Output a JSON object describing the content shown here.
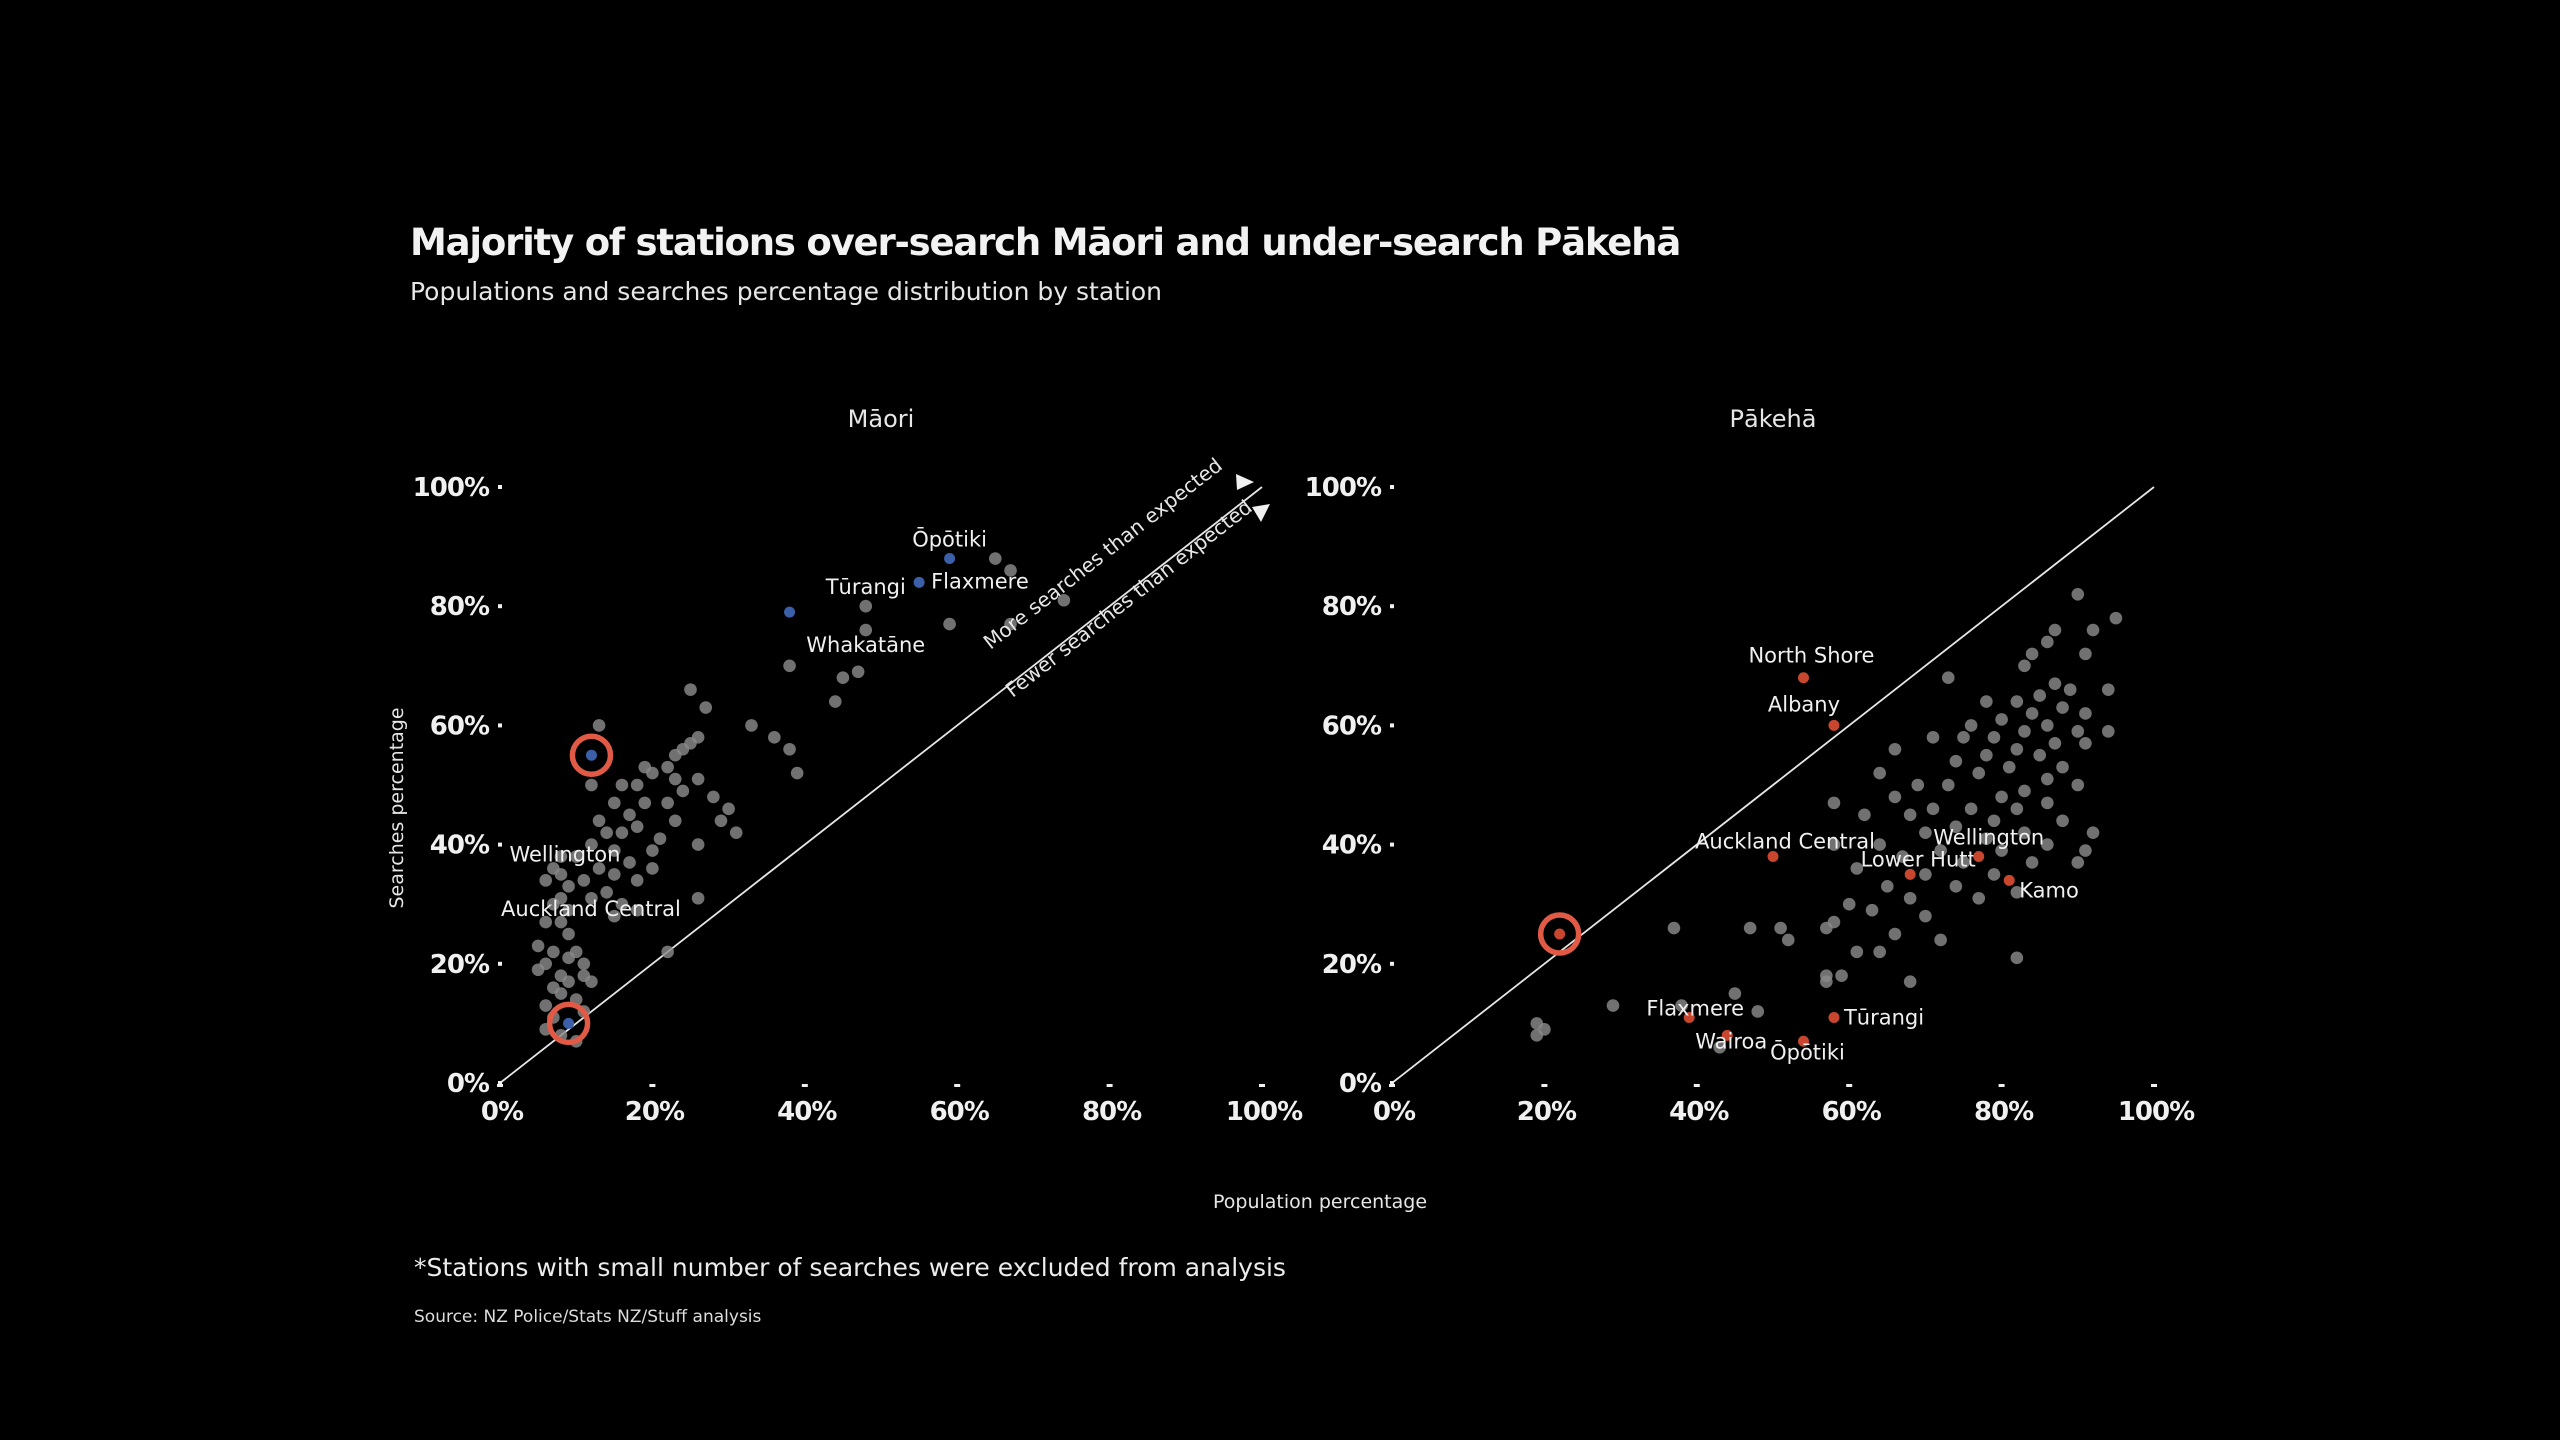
{
  "title": "Majority of stations over-search Māori and under-search Pākehā",
  "subtitle": "Populations and searches percentage distribution by station",
  "x_axis_label": "Population percentage",
  "y_axis_label": "Searches percentage",
  "footnote": "*Stations with small number of searches were excluded from analysis",
  "source": "Source: NZ Police/Stats NZ/Stuff analysis",
  "annotations": {
    "above": "More searches than expected",
    "below": "Fewer searches than expected"
  },
  "colors": {
    "background": "#000000",
    "point_gray": "#8a8a8a",
    "maori_highlight": "#3b5fa8",
    "pakeha_highlight": "#c8452e",
    "circle_ring": "#e05a45",
    "diagonal": "#e6e6e6"
  },
  "chart_data": [
    {
      "type": "scatter",
      "title": "Māori",
      "xlabel": "Population percentage",
      "ylabel": "Searches percentage",
      "xlim": [
        0,
        100
      ],
      "ylim": [
        0,
        100
      ],
      "x_ticks": [
        "0%",
        "20%",
        "40%",
        "60%",
        "80%",
        "100%"
      ],
      "y_ticks": [
        "0%",
        "20%",
        "40%",
        "60%",
        "80%",
        "100%"
      ],
      "reference_line": "y = x",
      "labeled_points": [
        {
          "label": "Ōpōtiki",
          "x": 59,
          "y": 88,
          "highlight": true
        },
        {
          "label": "Flaxmere",
          "x": 55,
          "y": 84,
          "highlight": true
        },
        {
          "label": "Tūrangi",
          "x": 48,
          "y": 80,
          "highlight": false
        },
        {
          "label": "Whakatāne",
          "x": 48,
          "y": 76,
          "highlight": false
        },
        {
          "label": "Wellington",
          "x": 8,
          "y": 35,
          "highlight": false
        },
        {
          "label": "Auckland Central",
          "x": 8,
          "y": 31,
          "highlight": false
        }
      ],
      "highlight_points": [
        {
          "x": 38,
          "y": 79
        },
        {
          "x": 12,
          "y": 55
        },
        {
          "x": 9,
          "y": 10
        }
      ],
      "circled_points": [
        {
          "x": 12,
          "y": 55
        },
        {
          "x": 9,
          "y": 10
        }
      ],
      "points": [
        {
          "x": 65,
          "y": 88
        },
        {
          "x": 67,
          "y": 86
        },
        {
          "x": 59,
          "y": 77
        },
        {
          "x": 67,
          "y": 77
        },
        {
          "x": 74,
          "y": 81
        },
        {
          "x": 38,
          "y": 70
        },
        {
          "x": 45,
          "y": 68
        },
        {
          "x": 47,
          "y": 69
        },
        {
          "x": 44,
          "y": 64
        },
        {
          "x": 36,
          "y": 58
        },
        {
          "x": 38,
          "y": 56
        },
        {
          "x": 39,
          "y": 52
        },
        {
          "x": 33,
          "y": 60
        },
        {
          "x": 25,
          "y": 66
        },
        {
          "x": 27,
          "y": 63
        },
        {
          "x": 26,
          "y": 58
        },
        {
          "x": 25,
          "y": 57
        },
        {
          "x": 24,
          "y": 56
        },
        {
          "x": 23,
          "y": 55
        },
        {
          "x": 22,
          "y": 53
        },
        {
          "x": 23,
          "y": 51
        },
        {
          "x": 26,
          "y": 51
        },
        {
          "x": 24,
          "y": 49
        },
        {
          "x": 22,
          "y": 47
        },
        {
          "x": 28,
          "y": 48
        },
        {
          "x": 20,
          "y": 52
        },
        {
          "x": 19,
          "y": 53
        },
        {
          "x": 18,
          "y": 50
        },
        {
          "x": 16,
          "y": 50
        },
        {
          "x": 15,
          "y": 47
        },
        {
          "x": 17,
          "y": 45
        },
        {
          "x": 19,
          "y": 47
        },
        {
          "x": 13,
          "y": 44
        },
        {
          "x": 14,
          "y": 42
        },
        {
          "x": 16,
          "y": 42
        },
        {
          "x": 18,
          "y": 43
        },
        {
          "x": 12,
          "y": 40
        },
        {
          "x": 15,
          "y": 39
        },
        {
          "x": 17,
          "y": 37
        },
        {
          "x": 20,
          "y": 39
        },
        {
          "x": 21,
          "y": 41
        },
        {
          "x": 23,
          "y": 44
        },
        {
          "x": 26,
          "y": 40
        },
        {
          "x": 29,
          "y": 44
        },
        {
          "x": 31,
          "y": 42
        },
        {
          "x": 10,
          "y": 38
        },
        {
          "x": 8,
          "y": 38
        },
        {
          "x": 7,
          "y": 36
        },
        {
          "x": 6,
          "y": 34
        },
        {
          "x": 9,
          "y": 33
        },
        {
          "x": 11,
          "y": 34
        },
        {
          "x": 13,
          "y": 36
        },
        {
          "x": 15,
          "y": 35
        },
        {
          "x": 18,
          "y": 34
        },
        {
          "x": 20,
          "y": 36
        },
        {
          "x": 12,
          "y": 31
        },
        {
          "x": 14,
          "y": 32
        },
        {
          "x": 16,
          "y": 30
        },
        {
          "x": 15,
          "y": 28
        },
        {
          "x": 18,
          "y": 29
        },
        {
          "x": 7,
          "y": 30
        },
        {
          "x": 9,
          "y": 29
        },
        {
          "x": 8,
          "y": 27
        },
        {
          "x": 6,
          "y": 27
        },
        {
          "x": 9,
          "y": 25
        },
        {
          "x": 5,
          "y": 23
        },
        {
          "x": 7,
          "y": 22
        },
        {
          "x": 9,
          "y": 21
        },
        {
          "x": 10,
          "y": 22
        },
        {
          "x": 11,
          "y": 20
        },
        {
          "x": 6,
          "y": 20
        },
        {
          "x": 8,
          "y": 18
        },
        {
          "x": 5,
          "y": 19
        },
        {
          "x": 9,
          "y": 17
        },
        {
          "x": 11,
          "y": 18
        },
        {
          "x": 7,
          "y": 16
        },
        {
          "x": 8,
          "y": 15
        },
        {
          "x": 10,
          "y": 14
        },
        {
          "x": 6,
          "y": 13
        },
        {
          "x": 12,
          "y": 17
        },
        {
          "x": 11,
          "y": 12
        },
        {
          "x": 7,
          "y": 11
        },
        {
          "x": 6,
          "y": 9
        },
        {
          "x": 8,
          "y": 8
        },
        {
          "x": 10,
          "y": 7
        },
        {
          "x": 13,
          "y": 60
        },
        {
          "x": 12,
          "y": 50
        },
        {
          "x": 22,
          "y": 22
        },
        {
          "x": 26,
          "y": 31
        },
        {
          "x": 30,
          "y": 46
        }
      ]
    },
    {
      "type": "scatter",
      "title": "Pākehā",
      "xlabel": "Population percentage",
      "ylabel": "Searches percentage",
      "xlim": [
        0,
        100
      ],
      "ylim": [
        0,
        100
      ],
      "x_ticks": [
        "0%",
        "20%",
        "40%",
        "60%",
        "80%",
        "100%"
      ],
      "y_ticks": [
        "0%",
        "20%",
        "40%",
        "60%",
        "80%",
        "100%"
      ],
      "reference_line": "y = x",
      "labeled_points": [
        {
          "label": "North Shore",
          "x": 54,
          "y": 68,
          "highlight": true
        },
        {
          "label": "Albany",
          "x": 58,
          "y": 60,
          "highlight": true
        },
        {
          "label": "Auckland Central",
          "x": 50,
          "y": 38,
          "highlight": true
        },
        {
          "label": "Lower Hutt",
          "x": 68,
          "y": 35,
          "highlight": true
        },
        {
          "label": "Wellington",
          "x": 77,
          "y": 38,
          "highlight": true
        },
        {
          "label": "Kamo",
          "x": 81,
          "y": 34,
          "highlight": true
        },
        {
          "label": "Flaxmere",
          "x": 39,
          "y": 11,
          "highlight": true
        },
        {
          "label": "Wairoa",
          "x": 44,
          "y": 8,
          "highlight": true
        },
        {
          "label": "Tūrangi",
          "x": 58,
          "y": 11,
          "highlight": true
        },
        {
          "label": "Ōpōtiki",
          "x": 54,
          "y": 7,
          "highlight": true
        }
      ],
      "highlight_points": [
        {
          "x": 22,
          "y": 25
        }
      ],
      "circled_points": [
        {
          "x": 22,
          "y": 25
        }
      ],
      "points": [
        {
          "x": 90,
          "y": 82
        },
        {
          "x": 95,
          "y": 78
        },
        {
          "x": 87,
          "y": 76
        },
        {
          "x": 92,
          "y": 76
        },
        {
          "x": 86,
          "y": 74
        },
        {
          "x": 84,
          "y": 72
        },
        {
          "x": 91,
          "y": 72
        },
        {
          "x": 83,
          "y": 70
        },
        {
          "x": 73,
          "y": 68
        },
        {
          "x": 87,
          "y": 67
        },
        {
          "x": 94,
          "y": 66
        },
        {
          "x": 89,
          "y": 66
        },
        {
          "x": 85,
          "y": 65
        },
        {
          "x": 82,
          "y": 64
        },
        {
          "x": 78,
          "y": 64
        },
        {
          "x": 88,
          "y": 63
        },
        {
          "x": 91,
          "y": 62
        },
        {
          "x": 84,
          "y": 62
        },
        {
          "x": 80,
          "y": 61
        },
        {
          "x": 76,
          "y": 60
        },
        {
          "x": 86,
          "y": 60
        },
        {
          "x": 90,
          "y": 59
        },
        {
          "x": 94,
          "y": 59
        },
        {
          "x": 83,
          "y": 59
        },
        {
          "x": 79,
          "y": 58
        },
        {
          "x": 75,
          "y": 58
        },
        {
          "x": 71,
          "y": 58
        },
        {
          "x": 87,
          "y": 57
        },
        {
          "x": 91,
          "y": 57
        },
        {
          "x": 82,
          "y": 56
        },
        {
          "x": 78,
          "y": 55
        },
        {
          "x": 85,
          "y": 55
        },
        {
          "x": 66,
          "y": 56
        },
        {
          "x": 74,
          "y": 54
        },
        {
          "x": 81,
          "y": 53
        },
        {
          "x": 88,
          "y": 53
        },
        {
          "x": 64,
          "y": 52
        },
        {
          "x": 77,
          "y": 52
        },
        {
          "x": 86,
          "y": 51
        },
        {
          "x": 90,
          "y": 50
        },
        {
          "x": 69,
          "y": 50
        },
        {
          "x": 73,
          "y": 50
        },
        {
          "x": 83,
          "y": 49
        },
        {
          "x": 80,
          "y": 48
        },
        {
          "x": 66,
          "y": 48
        },
        {
          "x": 86,
          "y": 47
        },
        {
          "x": 71,
          "y": 46
        },
        {
          "x": 76,
          "y": 46
        },
        {
          "x": 82,
          "y": 46
        },
        {
          "x": 62,
          "y": 45
        },
        {
          "x": 68,
          "y": 45
        },
        {
          "x": 79,
          "y": 44
        },
        {
          "x": 88,
          "y": 44
        },
        {
          "x": 74,
          "y": 43
        },
        {
          "x": 83,
          "y": 42
        },
        {
          "x": 70,
          "y": 42
        },
        {
          "x": 92,
          "y": 42
        },
        {
          "x": 78,
          "y": 41
        },
        {
          "x": 58,
          "y": 47
        },
        {
          "x": 86,
          "y": 40
        },
        {
          "x": 64,
          "y": 40
        },
        {
          "x": 72,
          "y": 39
        },
        {
          "x": 80,
          "y": 39
        },
        {
          "x": 91,
          "y": 39
        },
        {
          "x": 58,
          "y": 40
        },
        {
          "x": 67,
          "y": 38
        },
        {
          "x": 75,
          "y": 37
        },
        {
          "x": 84,
          "y": 37
        },
        {
          "x": 90,
          "y": 37
        },
        {
          "x": 61,
          "y": 36
        },
        {
          "x": 70,
          "y": 35
        },
        {
          "x": 79,
          "y": 35
        },
        {
          "x": 65,
          "y": 33
        },
        {
          "x": 74,
          "y": 33
        },
        {
          "x": 82,
          "y": 32
        },
        {
          "x": 60,
          "y": 30
        },
        {
          "x": 68,
          "y": 31
        },
        {
          "x": 77,
          "y": 31
        },
        {
          "x": 63,
          "y": 29
        },
        {
          "x": 70,
          "y": 28
        },
        {
          "x": 58,
          "y": 27
        },
        {
          "x": 57,
          "y": 26
        },
        {
          "x": 66,
          "y": 25
        },
        {
          "x": 72,
          "y": 24
        },
        {
          "x": 52,
          "y": 24
        },
        {
          "x": 47,
          "y": 26
        },
        {
          "x": 51,
          "y": 26
        },
        {
          "x": 37,
          "y": 26
        },
        {
          "x": 61,
          "y": 22
        },
        {
          "x": 64,
          "y": 22
        },
        {
          "x": 82,
          "y": 21
        },
        {
          "x": 57,
          "y": 18
        },
        {
          "x": 59,
          "y": 18
        },
        {
          "x": 57,
          "y": 17
        },
        {
          "x": 68,
          "y": 17
        },
        {
          "x": 45,
          "y": 15
        },
        {
          "x": 29,
          "y": 13
        },
        {
          "x": 38,
          "y": 13
        },
        {
          "x": 19,
          "y": 10
        },
        {
          "x": 20,
          "y": 9
        },
        {
          "x": 19,
          "y": 8
        },
        {
          "x": 43,
          "y": 6
        },
        {
          "x": 48,
          "y": 12
        }
      ]
    }
  ]
}
